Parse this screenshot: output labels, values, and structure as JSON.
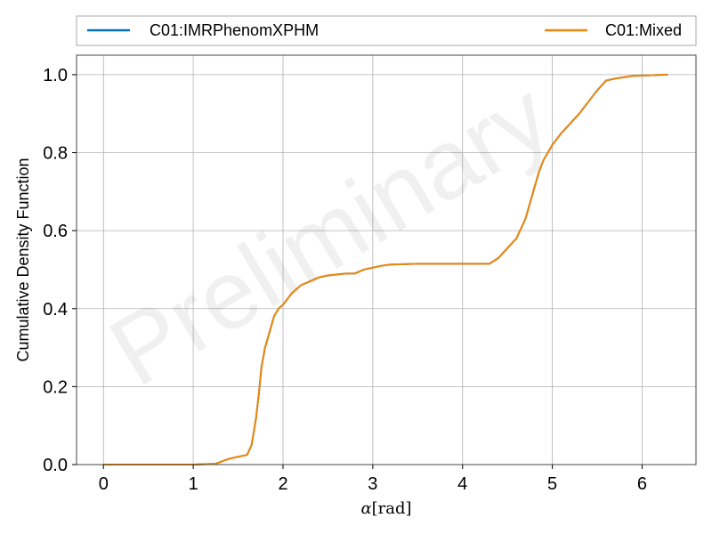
{
  "chart_data": {
    "type": "line",
    "title": "",
    "xlabel_symbol": "α",
    "xlabel_unit": "[rad]",
    "ylabel": "Cumulative Density Function",
    "xlim": [
      -0.3,
      6.6
    ],
    "ylim": [
      0.0,
      1.05
    ],
    "xticks": [
      0,
      1,
      2,
      3,
      4,
      5,
      6
    ],
    "yticks": [
      0.0,
      0.2,
      0.4,
      0.6,
      0.8,
      1.0
    ],
    "grid": true,
    "legend_position": "top (above plot)",
    "watermark": "Preliminary",
    "series": [
      {
        "name": "C01:IMRPhenomXPHM",
        "color": "#0072c1",
        "x": [
          0.0,
          1.0,
          1.25,
          1.4,
          1.5,
          1.6,
          1.65,
          1.7,
          1.73,
          1.76,
          1.8,
          1.85,
          1.9,
          1.95,
          2.0,
          2.1,
          2.2,
          2.3,
          2.4,
          2.5,
          2.7,
          2.8,
          2.9,
          3.0,
          3.1,
          3.2,
          3.5,
          4.0,
          4.3,
          4.4,
          4.5,
          4.6,
          4.7,
          4.75,
          4.8,
          4.85,
          4.9,
          5.0,
          5.1,
          5.2,
          5.3,
          5.4,
          5.5,
          5.6,
          5.7,
          5.9,
          6.28
        ],
        "values": [
          0.0,
          0.0,
          0.002,
          0.015,
          0.02,
          0.025,
          0.05,
          0.12,
          0.18,
          0.25,
          0.3,
          0.34,
          0.38,
          0.4,
          0.41,
          0.44,
          0.46,
          0.47,
          0.48,
          0.485,
          0.49,
          0.49,
          0.5,
          0.505,
          0.51,
          0.513,
          0.515,
          0.515,
          0.515,
          0.53,
          0.555,
          0.58,
          0.63,
          0.67,
          0.71,
          0.75,
          0.78,
          0.82,
          0.85,
          0.875,
          0.9,
          0.93,
          0.96,
          0.985,
          0.99,
          0.997,
          1.0
        ]
      },
      {
        "name": "C01:Mixed",
        "color": "#f0870a",
        "x": [
          0.0,
          1.0,
          1.25,
          1.4,
          1.5,
          1.6,
          1.65,
          1.7,
          1.73,
          1.76,
          1.8,
          1.85,
          1.9,
          1.95,
          2.0,
          2.1,
          2.2,
          2.3,
          2.4,
          2.5,
          2.7,
          2.8,
          2.9,
          3.0,
          3.1,
          3.2,
          3.5,
          4.0,
          4.3,
          4.4,
          4.5,
          4.6,
          4.7,
          4.75,
          4.8,
          4.85,
          4.9,
          5.0,
          5.1,
          5.2,
          5.3,
          5.4,
          5.5,
          5.6,
          5.7,
          5.9,
          6.28
        ],
        "values": [
          0.0,
          0.0,
          0.002,
          0.015,
          0.02,
          0.025,
          0.05,
          0.12,
          0.18,
          0.25,
          0.3,
          0.34,
          0.38,
          0.4,
          0.41,
          0.44,
          0.46,
          0.47,
          0.48,
          0.485,
          0.49,
          0.49,
          0.5,
          0.505,
          0.51,
          0.513,
          0.515,
          0.515,
          0.515,
          0.53,
          0.555,
          0.58,
          0.63,
          0.67,
          0.71,
          0.75,
          0.78,
          0.82,
          0.85,
          0.875,
          0.9,
          0.93,
          0.96,
          0.985,
          0.99,
          0.997,
          1.0
        ]
      }
    ]
  }
}
